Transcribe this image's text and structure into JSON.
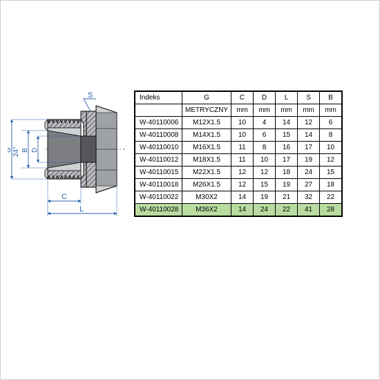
{
  "diagram": {
    "labels": {
      "S": "S",
      "G": "G",
      "angle": "24°",
      "B": "B",
      "D": "D",
      "C": "C",
      "L": "L"
    },
    "colors": {
      "dim_line": "#2b5fa8",
      "dim_text": "#2b5fa8",
      "part_fill_light": "#cfd0d2",
      "part_fill_dark": "#7c7e82",
      "part_hatch": "#3d3f44",
      "part_outline": "#000000",
      "highlight_row": "#b8dca0"
    }
  },
  "table": {
    "headers": [
      "Indeks",
      "G",
      "C",
      "D",
      "L",
      "S",
      "B"
    ],
    "subheaders": [
      "",
      "METRYCZNY",
      "mm",
      "mm",
      "mm",
      "mm",
      "mm"
    ],
    "rows": [
      {
        "cells": [
          "W-40110006",
          "M12X1.5",
          "10",
          "4",
          "14",
          "12",
          "6"
        ],
        "highlight": false
      },
      {
        "cells": [
          "W-40110008",
          "M14X1.5",
          "10",
          "6",
          "15",
          "14",
          "8"
        ],
        "highlight": false
      },
      {
        "cells": [
          "W-40110010",
          "M16X1.5",
          "11",
          "8",
          "16",
          "17",
          "10"
        ],
        "highlight": false
      },
      {
        "cells": [
          "W-40110012",
          "M18X1.5",
          "11",
          "10",
          "17",
          "19",
          "12"
        ],
        "highlight": false
      },
      {
        "cells": [
          "W-40110015",
          "M22X1.5",
          "12",
          "12",
          "18",
          "24",
          "15"
        ],
        "highlight": false
      },
      {
        "cells": [
          "W-40110018",
          "M26X1.5",
          "12",
          "15",
          "19",
          "27",
          "18"
        ],
        "highlight": false
      },
      {
        "cells": [
          "W-40110022",
          "M30X2",
          "14",
          "19",
          "21",
          "32",
          "22"
        ],
        "highlight": false
      },
      {
        "cells": [
          "W-40110028",
          "M36X2",
          "14",
          "24",
          "22",
          "41",
          "28"
        ],
        "highlight": true
      }
    ]
  }
}
